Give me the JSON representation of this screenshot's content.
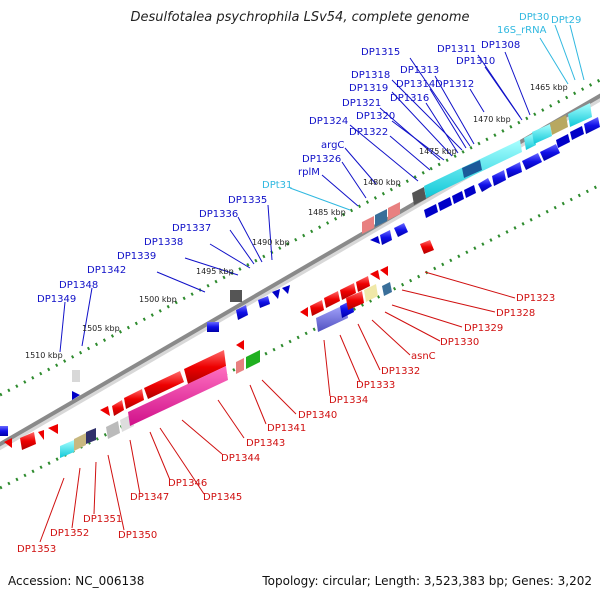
{
  "title": "Desulfotalea psychrophila LSv54, complete genome",
  "footer": {
    "accession": "Accession: NC_006138",
    "summary": "Topology: circular; Length: 3,523,383 bp; Genes: 3,202"
  },
  "colors": {
    "top_label": "#1010c8",
    "top_rna_label": "#30b8e0",
    "bottom_label": "#d01010",
    "backbone": "#8a8a8a",
    "tick_dots": "#2e8b2e"
  },
  "scale_ticks": [
    "1465 kbp",
    "1470 kbp",
    "1475 kbp",
    "1480 kbp",
    "1485 kbp",
    "1490 kbp",
    "1495 kbp",
    "1500 kbp",
    "1505 kbp",
    "1510 kbp"
  ],
  "top_labels": [
    "DPt30",
    "DPt29",
    "16S_rRNA",
    "DP1311",
    "DP1308",
    "DP1310",
    "DP1315",
    "DP1313",
    "DP1318",
    "DP1314",
    "DP1312",
    "DP1319",
    "DP1316",
    "DP1321",
    "DP1320",
    "DP1324",
    "DP1322",
    "argC",
    "DP1326",
    "rplM",
    "DPt31",
    "DP1335",
    "DP1336",
    "DP1337",
    "DP1338",
    "DP1339",
    "DP1342",
    "DP1348",
    "DP1349"
  ],
  "top_rna_labels": [
    "DPt30",
    "DPt29",
    "16S_rRNA",
    "DPt31"
  ],
  "bottom_labels": [
    "DP1323",
    "DP1328",
    "DP1329",
    "DP1330",
    "asnC",
    "DP1332",
    "DP1333",
    "DP1334",
    "DP1340",
    "DP1341",
    "DP1343",
    "DP1344",
    "DP1346",
    "DP1345",
    "DP1347",
    "DP1351",
    "DP1350",
    "DP1352",
    "DP1353"
  ]
}
